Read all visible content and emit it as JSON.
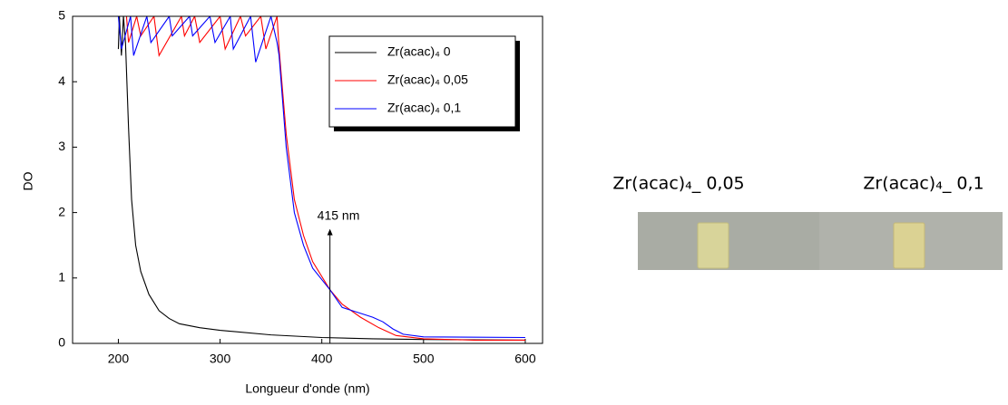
{
  "chart_data": {
    "type": "line",
    "xlabel": "Longueur d'onde (nm)",
    "ylabel": "DO",
    "xlim": [
      155,
      617
    ],
    "ylim": [
      0,
      5
    ],
    "xticks": [
      200,
      300,
      400,
      500,
      600
    ],
    "yticks": [
      0,
      1,
      2,
      3,
      4,
      5
    ],
    "legend": "upper right",
    "series": [
      {
        "name": "Zr(acac)₄ 0",
        "color": "#000000",
        "x": [
          200,
          201,
          203,
          205,
          207,
          210,
          213,
          217,
          222,
          230,
          240,
          250,
          260,
          280,
          300,
          350,
          400,
          450,
          500,
          600
        ],
        "values": [
          4.5,
          5,
          4.4,
          5,
          4.6,
          3.3,
          2.2,
          1.5,
          1.1,
          0.75,
          0.5,
          0.38,
          0.3,
          0.24,
          0.2,
          0.13,
          0.09,
          0.07,
          0.06,
          0.05
        ]
      },
      {
        "name": "Zr(acac)₄ 0,05",
        "color": "#ff0000",
        "x": [
          208,
          210,
          218,
          222,
          235,
          240,
          262,
          265,
          275,
          280,
          300,
          305,
          320,
          325,
          340,
          345,
          356,
          358,
          365,
          373,
          382,
          391,
          408,
          420,
          438,
          456,
          473,
          500,
          550,
          600
        ],
        "values": [
          5,
          4.6,
          5,
          4.7,
          5,
          4.4,
          5,
          4.7,
          5,
          4.6,
          5,
          4.5,
          5,
          4.7,
          5,
          4.5,
          5,
          4.5,
          3.2,
          2.2,
          1.65,
          1.25,
          0.82,
          0.6,
          0.4,
          0.24,
          0.12,
          0.07,
          0.05,
          0.05
        ]
      },
      {
        "name": "Zr(acac)₄ 0,1",
        "color": "#0000ff",
        "x": [
          200,
          203,
          212,
          215,
          228,
          232,
          250,
          253,
          270,
          273,
          290,
          295,
          310,
          313,
          330,
          335,
          350,
          356,
          358,
          365,
          373,
          382,
          391,
          408,
          420,
          440,
          450,
          460,
          470,
          480,
          500,
          600
        ],
        "values": [
          5,
          4.5,
          5,
          4.4,
          5,
          4.6,
          5,
          4.7,
          5,
          4.7,
          5,
          4.6,
          5,
          4.5,
          5,
          4.3,
          5,
          4.6,
          4.4,
          3.0,
          2.0,
          1.5,
          1.15,
          0.82,
          0.55,
          0.45,
          0.4,
          0.33,
          0.22,
          0.14,
          0.1,
          0.09
        ]
      }
    ],
    "annotation": {
      "text": "415 nm",
      "x": 408,
      "y_start": 0,
      "y_end": 1.75
    }
  },
  "photos": [
    {
      "caption": "Zr(acac)₄_ 0,05"
    },
    {
      "caption": "Zr(acac)₄_ 0,1"
    }
  ]
}
